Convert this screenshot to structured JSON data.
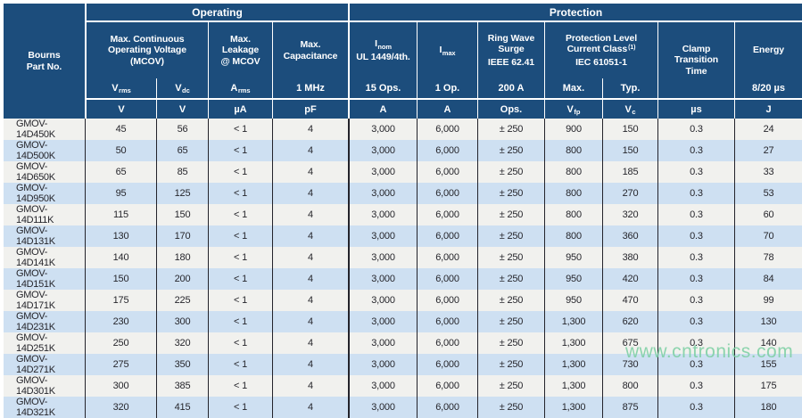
{
  "colors": {
    "header_navy": "#1c4d7c",
    "stripe_white": "#f1f1ee",
    "stripe_blue": "#cee0f2",
    "watermark_green": "#7bcfa2"
  },
  "header": {
    "part_no": "Bourns\nPart No.",
    "groups": {
      "operating": "Operating",
      "protection": "Protection"
    },
    "labels": {
      "mcov": "Max. Continuous\nOperating Voltage\n(MCOV)",
      "leakage": "Max.\nLeakage\n@ MCOV",
      "capacitance": "Max.\nCapacitance",
      "inom": {
        "base": "I",
        "sub": "nom",
        "line2": "UL 1449/4th."
      },
      "imax": {
        "base": "I",
        "sub": "max"
      },
      "ring_wave": {
        "line1": "Ring Wave\nSurge",
        "line2": "IEEE 62.41"
      },
      "protection_level": {
        "line1": "Protection Level\nCurrent Class",
        "sup": "(1)",
        "line2": "IEC 61051-1"
      },
      "clamp": "Clamp\nTransition\nTime",
      "energy": "Energy"
    },
    "sub_labels": {
      "vrms": {
        "base": "V",
        "sub": "rms"
      },
      "vdc": {
        "base": "V",
        "sub": "dc"
      },
      "arms": {
        "base": "A",
        "sub": "rms"
      },
      "mhz": "1 MHz",
      "ops15": "15 Ops.",
      "op1": "1 Op.",
      "a200": "200 A",
      "max": "Max.",
      "typ": "Typ.",
      "energy_cond": "8/20 µs"
    },
    "units": {
      "vrms": "V",
      "vdc": "V",
      "arms": "µA",
      "cap": "pF",
      "inom": "A",
      "imax": "A",
      "ring": "Ops.",
      "vfp": {
        "base": "V",
        "sub": "fp"
      },
      "vc": {
        "base": "V",
        "sub": "c"
      },
      "clamp": "µs",
      "energy": "J"
    }
  },
  "table": {
    "rows": [
      {
        "part": "GMOV-14D450K",
        "values": [
          "45",
          "56",
          "< 1",
          "4",
          "3,000",
          "6,000",
          "± 250",
          "900",
          "150",
          "0.3",
          "24"
        ]
      },
      {
        "part": "GMOV-14D500K",
        "values": [
          "50",
          "65",
          "< 1",
          "4",
          "3,000",
          "6,000",
          "± 250",
          "800",
          "150",
          "0.3",
          "27"
        ]
      },
      {
        "part": "GMOV-14D650K",
        "values": [
          "65",
          "85",
          "< 1",
          "4",
          "3,000",
          "6,000",
          "± 250",
          "800",
          "185",
          "0.3",
          "33"
        ]
      },
      {
        "part": "GMOV-14D950K",
        "values": [
          "95",
          "125",
          "< 1",
          "4",
          "3,000",
          "6,000",
          "± 250",
          "800",
          "270",
          "0.3",
          "53"
        ]
      },
      {
        "part": "GMOV-14D111K",
        "values": [
          "115",
          "150",
          "< 1",
          "4",
          "3,000",
          "6,000",
          "± 250",
          "800",
          "320",
          "0.3",
          "60"
        ]
      },
      {
        "part": "GMOV-14D131K",
        "values": [
          "130",
          "170",
          "< 1",
          "4",
          "3,000",
          "6,000",
          "± 250",
          "800",
          "360",
          "0.3",
          "70"
        ]
      },
      {
        "part": "GMOV-14D141K",
        "values": [
          "140",
          "180",
          "< 1",
          "4",
          "3,000",
          "6,000",
          "± 250",
          "950",
          "380",
          "0.3",
          "78"
        ]
      },
      {
        "part": "GMOV-14D151K",
        "values": [
          "150",
          "200",
          "< 1",
          "4",
          "3,000",
          "6,000",
          "± 250",
          "950",
          "420",
          "0.3",
          "84"
        ]
      },
      {
        "part": "GMOV-14D171K",
        "values": [
          "175",
          "225",
          "< 1",
          "4",
          "3,000",
          "6,000",
          "± 250",
          "950",
          "470",
          "0.3",
          "99"
        ]
      },
      {
        "part": "GMOV-14D231K",
        "values": [
          "230",
          "300",
          "< 1",
          "4",
          "3,000",
          "6,000",
          "± 250",
          "1,300",
          "620",
          "0.3",
          "130"
        ]
      },
      {
        "part": "GMOV-14D251K",
        "values": [
          "250",
          "320",
          "< 1",
          "4",
          "3,000",
          "6,000",
          "± 250",
          "1,300",
          "675",
          "0.3",
          "140"
        ]
      },
      {
        "part": "GMOV-14D271K",
        "values": [
          "275",
          "350",
          "< 1",
          "4",
          "3,000",
          "6,000",
          "± 250",
          "1,300",
          "730",
          "0.3",
          "155"
        ]
      },
      {
        "part": "GMOV-14D301K",
        "values": [
          "300",
          "385",
          "< 1",
          "4",
          "3,000",
          "6,000",
          "± 250",
          "1,300",
          "800",
          "0.3",
          "175"
        ]
      },
      {
        "part": "GMOV-14D321K",
        "values": [
          "320",
          "415",
          "< 1",
          "4",
          "3,000",
          "6,000",
          "± 250",
          "1,300",
          "875",
          "0.3",
          "180"
        ]
      }
    ]
  },
  "watermark": {
    "text": "www.cntronics.com"
  }
}
